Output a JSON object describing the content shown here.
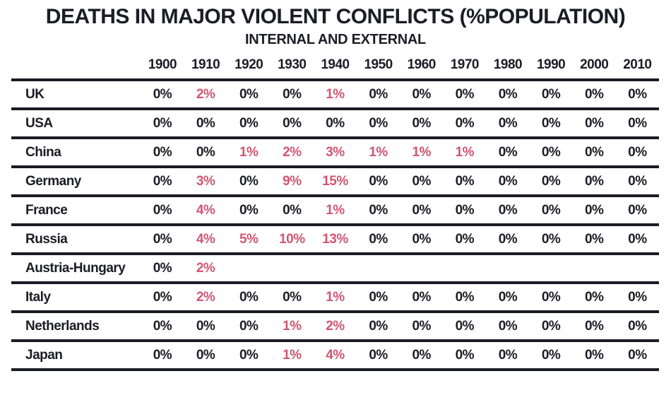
{
  "title": "DEATHS IN MAJOR VIOLENT CONFLICTS (%POPULATION)",
  "subtitle": "INTERNAL AND EXTERNAL",
  "colors": {
    "accent": "#d05672",
    "text": "#1c1c26",
    "line": "#1b1b24",
    "background": "#ffffff"
  },
  "chart_data": {
    "type": "table",
    "title": "DEATHS IN MAJOR VIOLENT CONFLICTS (%POPULATION)",
    "subtitle": "INTERNAL AND EXTERNAL",
    "columns": [
      "1900",
      "1910",
      "1920",
      "1930",
      "1940",
      "1950",
      "1960",
      "1970",
      "1980",
      "1990",
      "2000",
      "2010"
    ],
    "rows": [
      {
        "country": "UK",
        "values": [
          "0%",
          "2%",
          "0%",
          "0%",
          "1%",
          "0%",
          "0%",
          "0%",
          "0%",
          "0%",
          "0%",
          "0%"
        ]
      },
      {
        "country": "USA",
        "values": [
          "0%",
          "0%",
          "0%",
          "0%",
          "0%",
          "0%",
          "0%",
          "0%",
          "0%",
          "0%",
          "0%",
          "0%"
        ]
      },
      {
        "country": "China",
        "values": [
          "0%",
          "0%",
          "1%",
          "2%",
          "3%",
          "1%",
          "1%",
          "1%",
          "0%",
          "0%",
          "0%",
          "0%"
        ]
      },
      {
        "country": "Germany",
        "values": [
          "0%",
          "3%",
          "0%",
          "9%",
          "15%",
          "0%",
          "0%",
          "0%",
          "0%",
          "0%",
          "0%",
          "0%"
        ]
      },
      {
        "country": "France",
        "values": [
          "0%",
          "4%",
          "0%",
          "0%",
          "1%",
          "0%",
          "0%",
          "0%",
          "0%",
          "0%",
          "0%",
          "0%"
        ]
      },
      {
        "country": "Russia",
        "values": [
          "0%",
          "4%",
          "5%",
          "10%",
          "13%",
          "0%",
          "0%",
          "0%",
          "0%",
          "0%",
          "0%",
          "0%"
        ]
      },
      {
        "country": "Austria-Hungary",
        "values": [
          "0%",
          "2%",
          "",
          "",
          "",
          "",
          "",
          "",
          "",
          "",
          "",
          ""
        ]
      },
      {
        "country": "Italy",
        "values": [
          "0%",
          "2%",
          "0%",
          "0%",
          "1%",
          "0%",
          "0%",
          "0%",
          "0%",
          "0%",
          "0%",
          "0%"
        ]
      },
      {
        "country": "Netherlands",
        "values": [
          "0%",
          "0%",
          "0%",
          "1%",
          "2%",
          "0%",
          "0%",
          "0%",
          "0%",
          "0%",
          "0%",
          "0%"
        ]
      },
      {
        "country": "Japan",
        "values": [
          "0%",
          "0%",
          "0%",
          "1%",
          "4%",
          "0%",
          "0%",
          "0%",
          "0%",
          "0%",
          "0%",
          "0%"
        ]
      }
    ],
    "highlight_rule": "non-zero percentages rendered in accent pink",
    "legend_position": "none",
    "grid": "horizontal rules between rows"
  }
}
